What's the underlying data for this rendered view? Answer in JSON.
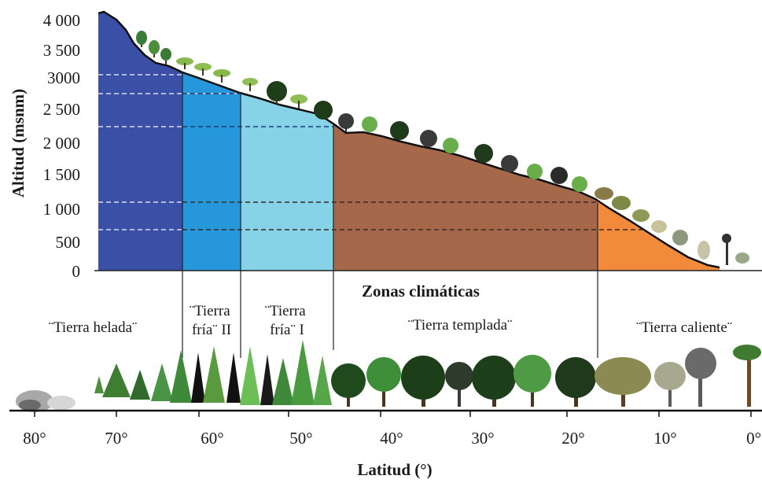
{
  "y_axis": {
    "title": "Altitud (msnm)",
    "ticks": [
      "4 000",
      "3 500",
      "3000",
      "2 500",
      "2 000",
      "1 500",
      "1 000",
      "500",
      "0"
    ]
  },
  "x_axis": {
    "title": "Latitud (°)",
    "ticks": [
      "80°",
      "70°",
      "60°",
      "50°",
      "40°",
      "30°",
      "20°",
      "10°",
      "0°"
    ]
  },
  "zones_title": "Zonas climáticas",
  "zones": [
    {
      "id": "helada",
      "lines": [
        "¨Tierra helada¨"
      ],
      "color": "#3a4fa6"
    },
    {
      "id": "fria2",
      "lines": [
        "¨Tierra",
        "fría¨ II"
      ],
      "color": "#2797dc"
    },
    {
      "id": "fria1",
      "lines": [
        "¨Tierra",
        "fría¨ I"
      ],
      "color": "#86d2e6"
    },
    {
      "id": "templada",
      "lines": [
        "¨Tierra templada¨"
      ],
      "color": "#a6684a"
    },
    {
      "id": "caliente",
      "lines": [
        "¨Tierra caliente¨"
      ],
      "color": "#f28a3c"
    }
  ],
  "icons": {
    "trees": "tree-icon",
    "rocks": "rock-icon"
  }
}
